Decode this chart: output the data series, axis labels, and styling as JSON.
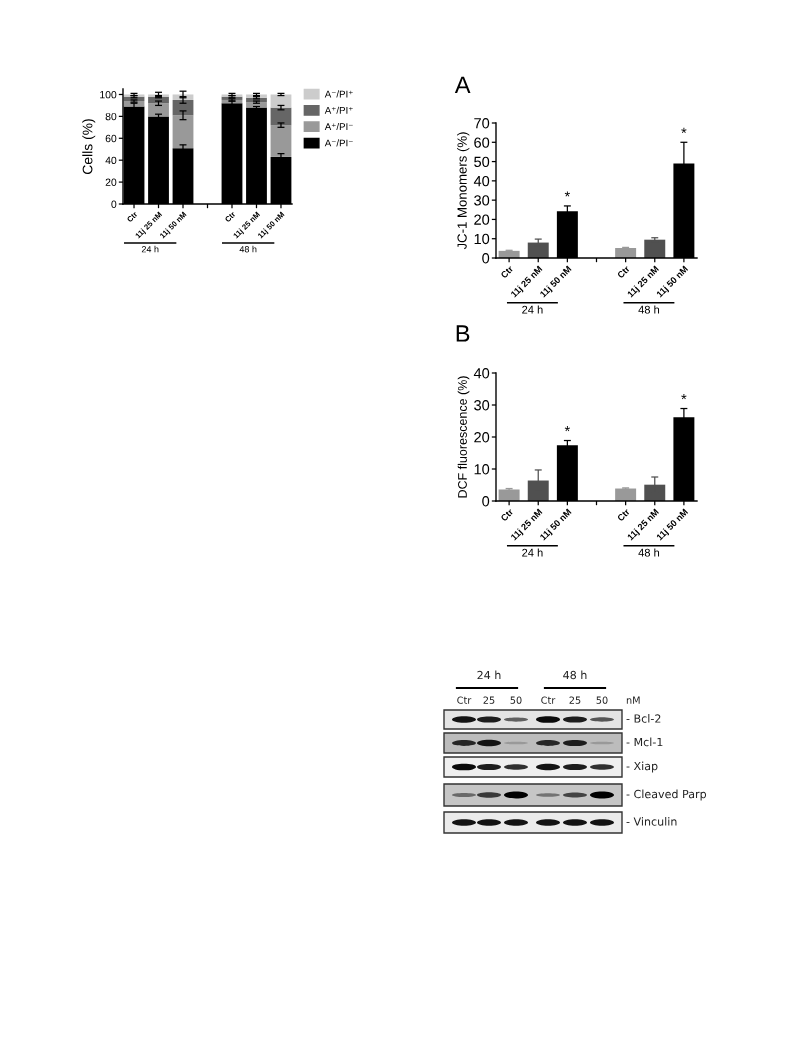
{
  "chart_data": [
    {
      "type": "bar",
      "stacked": true,
      "ylabel": "Cells (%)",
      "categories": [
        "Ctr",
        "11j 25 nM",
        "11j 50 nM",
        null,
        "Ctr",
        "11j 25 nM",
        "11j 50 nM"
      ],
      "series": [
        {
          "name": "A⁻/PI⁻",
          "color": "#000000",
          "values": [
            89,
            80,
            51,
            null,
            92,
            88,
            43
          ],
          "errors": [
            3,
            2,
            3,
            null,
            2,
            1,
            3
          ]
        },
        {
          "name": "A⁺/PI⁻",
          "color": "#999999",
          "values": [
            5,
            12,
            30,
            null,
            3,
            5,
            29
          ],
          "errors": [
            1,
            2,
            4,
            null,
            1,
            1,
            2
          ]
        },
        {
          "name": "A⁺/PI⁺",
          "color": "#666666",
          "values": [
            4,
            6,
            14,
            null,
            3,
            4,
            16
          ],
          "errors": [
            1,
            1,
            3,
            null,
            1,
            1,
            2
          ]
        },
        {
          "name": "A⁻/PI⁺",
          "color": "#cccccc",
          "values": [
            2,
            2,
            5,
            null,
            2,
            3,
            12
          ],
          "errors": [
            1,
            2,
            3,
            null,
            1,
            1,
            1
          ]
        }
      ],
      "ylim": [
        0,
        105
      ],
      "yticks": [
        0,
        20,
        40,
        60,
        80,
        100
      ],
      "legend": "top right",
      "annotations": [
        "24 h",
        "48 h"
      ]
    },
    {
      "type": "bar",
      "title": "A",
      "ylabel": "JC-1 Monomers (%)",
      "categories": [
        "Ctr",
        "11j 25 nM",
        "11j 50 nM",
        null,
        "Ctr",
        "11j 25 nM",
        "11j 50 nM"
      ],
      "values": [
        3.7,
        8,
        24.2,
        null,
        5.2,
        9.5,
        49
      ],
      "colors": [
        "#999999",
        "#505050",
        "#000000",
        null,
        "#999999",
        "#505050",
        "#000000"
      ],
      "errors": [
        0.3,
        1.8,
        2.8,
        null,
        0.3,
        1,
        11
      ],
      "value_labels": [
        null,
        null,
        "*",
        null,
        null,
        null,
        "*"
      ],
      "ylim": [
        0,
        70
      ],
      "yticks": [
        0,
        10,
        20,
        30,
        40,
        50,
        60,
        70
      ],
      "annotations": [
        "24 h",
        "48 h"
      ]
    },
    {
      "type": "bar",
      "title": "B",
      "ylabel": "DCF fluorescence (%)",
      "categories": [
        "Ctr",
        "11j 25 nM",
        "11j 50 nM",
        null,
        "Ctr",
        "11j 25 nM",
        "11j 50 nM"
      ],
      "values": [
        3.6,
        6.4,
        17.4,
        null,
        3.9,
        5.1,
        26.2
      ],
      "colors": [
        "#999999",
        "#505050",
        "#000000",
        null,
        "#999999",
        "#505050",
        "#000000"
      ],
      "errors": [
        0.3,
        3.3,
        1.5,
        null,
        0.2,
        2.4,
        2.7
      ],
      "value_labels": [
        null,
        null,
        "*",
        null,
        null,
        null,
        "*"
      ],
      "ylim": [
        0,
        40
      ],
      "yticks": [
        0,
        10,
        20,
        30,
        40
      ],
      "annotations": [
        "24 h",
        "48 h"
      ]
    },
    {
      "type": "other",
      "annotations": [
        "24 h",
        "48 h",
        "Ctr",
        "25",
        "50",
        "Ctr",
        "25",
        "50",
        "nM",
        "- Bcl-2",
        "- Mcl-1",
        "- Xiap",
        "- Cleaved Parp",
        "- Vinculin"
      ]
    }
  ]
}
